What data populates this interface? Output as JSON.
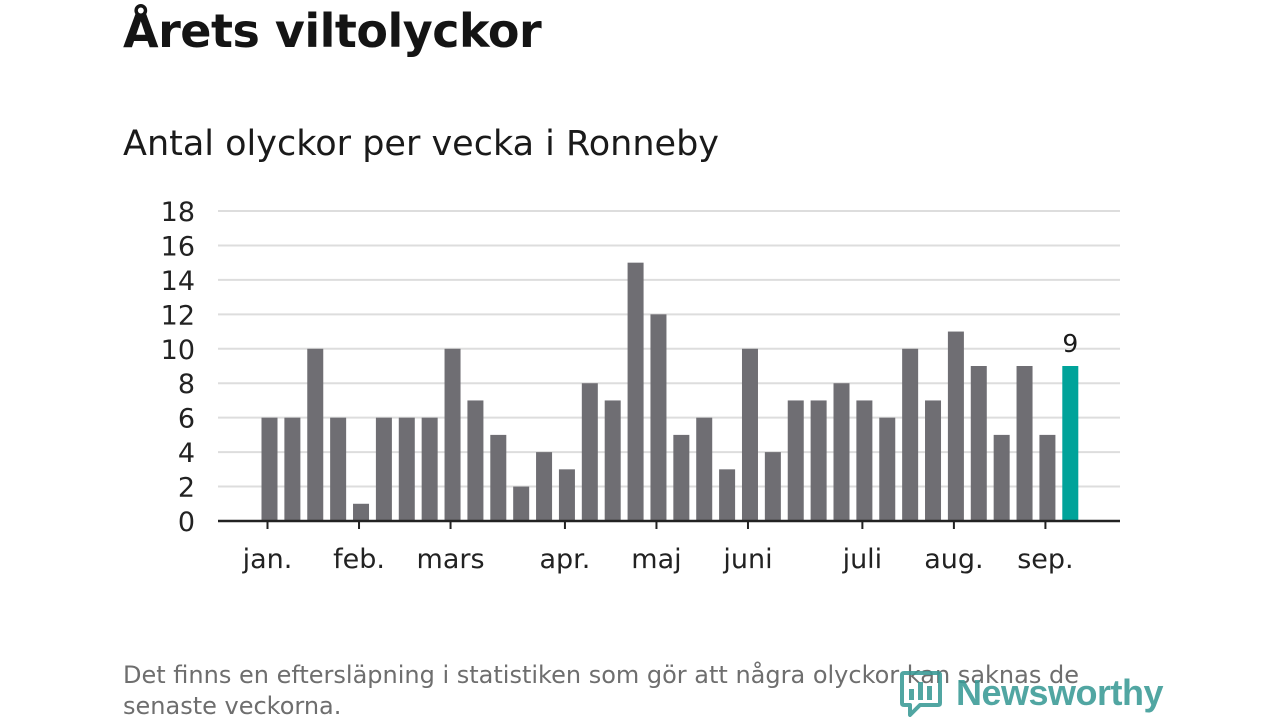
{
  "title": "Årets viltolyckor",
  "subtitle": "Antal olyckor per vecka i Ronneby",
  "footnote": "Det finns en eftersläpning i statistiken som gör att några olyckor kan saknas de senaste veckorna.",
  "logo": {
    "text": "Newsworthy",
    "icon": "newsworthy-logo-icon"
  },
  "colors": {
    "bar": "#6f6e73",
    "highlight": "#00a39a",
    "grid": "#dddddd",
    "axis": "#222222",
    "logo": "#3a9a96"
  },
  "chart_data": {
    "type": "bar",
    "title": "Antal olyckor per vecka i Ronneby",
    "xlabel": "",
    "ylabel": "",
    "ylim": [
      0,
      18
    ],
    "yticks": [
      0,
      2,
      4,
      6,
      8,
      10,
      12,
      14,
      16,
      18
    ],
    "grid": true,
    "values": [
      6,
      6,
      10,
      6,
      1,
      6,
      6,
      6,
      10,
      7,
      5,
      2,
      4,
      3,
      8,
      7,
      15,
      12,
      5,
      6,
      3,
      10,
      4,
      7,
      7,
      8,
      7,
      6,
      10,
      7,
      11,
      9,
      5,
      9,
      5,
      9
    ],
    "month_labels": [
      {
        "label": "jan.",
        "bar_index": 0
      },
      {
        "label": "feb.",
        "bar_index": 4
      },
      {
        "label": "mars",
        "bar_index": 8
      },
      {
        "label": "apr.",
        "bar_index": 13
      },
      {
        "label": "maj",
        "bar_index": 17
      },
      {
        "label": "juni",
        "bar_index": 21
      },
      {
        "label": "juli",
        "bar_index": 26
      },
      {
        "label": "aug.",
        "bar_index": 30
      },
      {
        "label": "sep.",
        "bar_index": 34
      }
    ],
    "highlight_index": 35,
    "highlight_label": "9"
  }
}
